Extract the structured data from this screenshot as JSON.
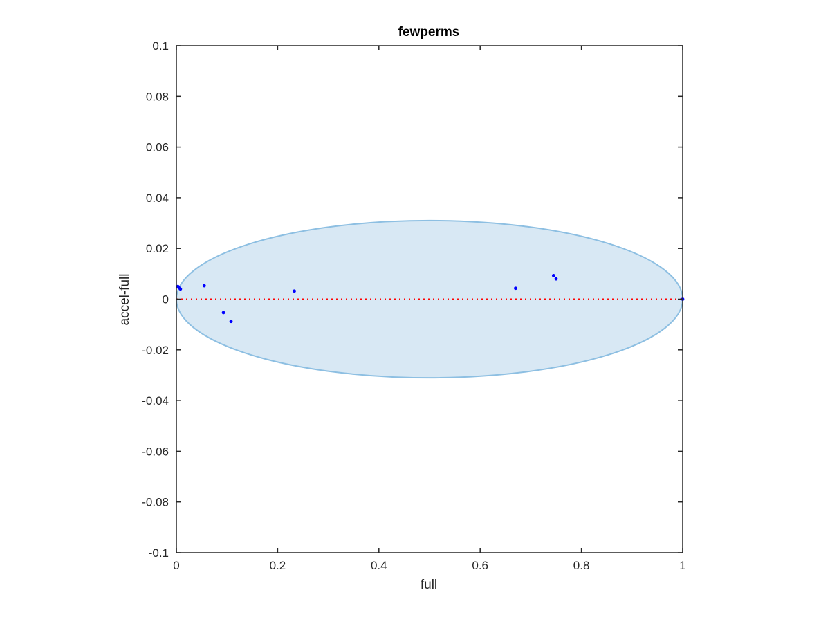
{
  "chart_data": {
    "type": "scatter",
    "title": "fewperms",
    "xlabel": "full",
    "ylabel": "accel-full",
    "xlim": [
      0,
      1
    ],
    "ylim": [
      -0.1,
      0.1
    ],
    "xticks": [
      0,
      0.2,
      0.4,
      0.6,
      0.8,
      1
    ],
    "xtick_labels": [
      "0",
      "0.2",
      "0.4",
      "0.6",
      "0.8",
      "1"
    ],
    "yticks": [
      0.1,
      0.08,
      0.06,
      0.04,
      0.02,
      0,
      -0.02,
      -0.04,
      -0.06,
      -0.08,
      -0.1
    ],
    "ytick_labels": [
      "0.1",
      "0.08",
      "0.06",
      "0.04",
      "0.02",
      "0",
      "-0.02",
      "-0.04",
      "-0.06",
      "-0.08",
      "-0.1"
    ],
    "grid": false,
    "legend": "none",
    "colors": {
      "points": "#0000ff",
      "reference_line": "#ff0000",
      "ellipse_fill": "#d8e8f4",
      "ellipse_stroke": "#8dbfe2",
      "axes": "#262626"
    },
    "reference_line": {
      "y": 0,
      "style": "dotted"
    },
    "ellipse": {
      "center": [
        0.5,
        0
      ],
      "x_semi_axis": 0.5,
      "y_semi_axis": 0.031
    },
    "points": [
      {
        "x": 0.003,
        "y": 0.005
      },
      {
        "x": 0.005,
        "y": 0.0045
      },
      {
        "x": 0.008,
        "y": 0.004
      },
      {
        "x": 0.055,
        "y": 0.0053
      },
      {
        "x": 0.093,
        "y": -0.0053
      },
      {
        "x": 0.108,
        "y": -0.0088
      },
      {
        "x": 0.233,
        "y": 0.0032
      },
      {
        "x": 0.67,
        "y": 0.0043
      },
      {
        "x": 0.745,
        "y": 0.0093
      },
      {
        "x": 0.75,
        "y": 0.008
      },
      {
        "x": 1.0,
        "y": 0.0
      }
    ]
  }
}
